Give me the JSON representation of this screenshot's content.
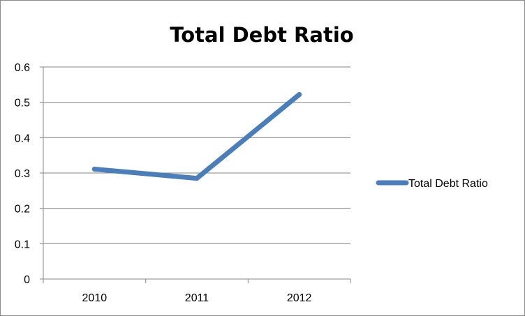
{
  "chart_data": {
    "type": "line",
    "title": "Total Debt Ratio",
    "xlabel": "",
    "ylabel": "",
    "categories": [
      "2010",
      "2011",
      "2012"
    ],
    "series": [
      {
        "name": "Total Debt Ratio",
        "values": [
          0.311,
          0.285,
          0.522
        ],
        "color": "#4a7ebb"
      }
    ],
    "y_ticks": [
      "0",
      "0.1",
      "0.2",
      "0.3",
      "0.4",
      "0.5",
      "0.6"
    ],
    "ylim": [
      0,
      0.6
    ],
    "grid": true,
    "legend_position": "right"
  }
}
